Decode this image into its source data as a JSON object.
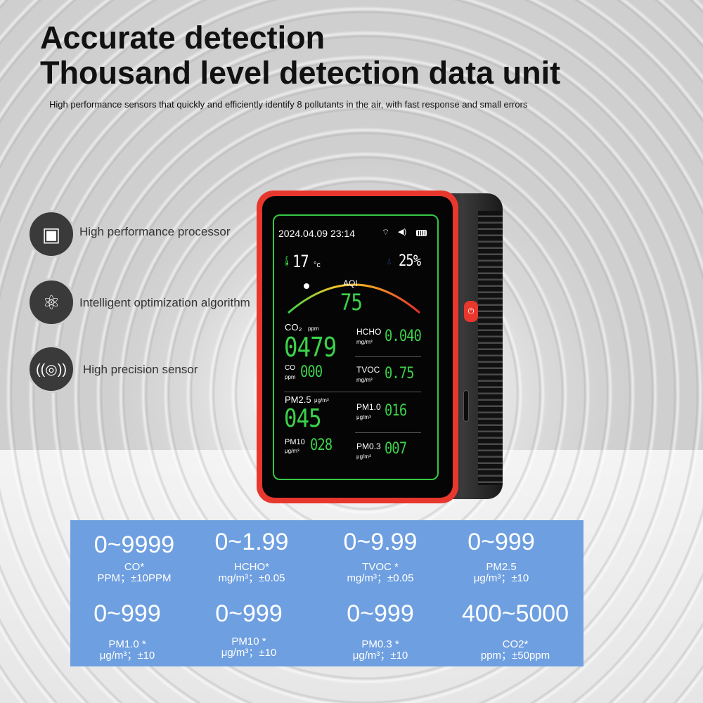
{
  "header": {
    "title_line1": "Accurate detection",
    "title_line2": "Thousand level detection data unit",
    "subtitle": "High performance sensors that quickly and efficiently identify 8 pollutants in the air, with fast response and small errors"
  },
  "features": [
    {
      "icon": "processor-chip-icon",
      "label": "High performance processor"
    },
    {
      "icon": "atom-icon",
      "label": "Intelligent optimization algorithm"
    },
    {
      "icon": "sensor-waves-icon",
      "label": "High precision sensor"
    }
  ],
  "device": {
    "datetime": "2024.04.09 23:14",
    "status_icons": [
      "wifi-icon",
      "speaker-icon",
      "battery-icon"
    ],
    "temperature": "17",
    "temperature_unit": "°c",
    "humidity": "25%",
    "aqi_label": "AQI",
    "aqi_value": "75",
    "readings": {
      "co2": {
        "label": "CO₂",
        "unit": "ppm",
        "value": "0479"
      },
      "hcho": {
        "label": "HCHO",
        "unit": "mg/m³",
        "value": "0.040"
      },
      "co": {
        "label": "CO",
        "unit": "ppm",
        "value": "000"
      },
      "tvoc": {
        "label": "TVOC",
        "unit": "mg/m³",
        "value": "0.75"
      },
      "pm25": {
        "label": "PM2.5",
        "unit": "μg/m³",
        "value": "045"
      },
      "pm10a": {
        "label": "PM1.0",
        "unit": "μg/m³",
        "value": "016"
      },
      "pm10": {
        "label": "PM10",
        "unit": "μg/m³",
        "value": "028"
      },
      "pm03": {
        "label": "PM0.3",
        "unit": "μg/m³",
        "value": "007"
      }
    },
    "colors": {
      "screen_green": "#3bd24a",
      "frame_red": "#e8372d"
    }
  },
  "specs": [
    {
      "range": "0~9999",
      "name": "CO*",
      "accuracy": "PPM；±10PPM"
    },
    {
      "range": "0~1.99",
      "name": "HCHO*",
      "accuracy": "mg/m³；±0.05"
    },
    {
      "range": "0~9.99",
      "name": "TVOC *",
      "accuracy": "mg/m³；±0.05"
    },
    {
      "range": "0~999",
      "name": "PM2.5",
      "accuracy": "μg/m³；±10"
    },
    {
      "range": "0~999",
      "name": "PM1.0 *",
      "accuracy": "μg/m³；±10"
    },
    {
      "range": "0~999",
      "name": "PM10 *",
      "accuracy": "μg/m³；±10"
    },
    {
      "range": "0~999",
      "name": "PM0.3 *",
      "accuracy": "μg/m³；±10"
    },
    {
      "range": "400~5000",
      "name": "CO2*",
      "accuracy": "ppm；±50ppm"
    }
  ],
  "panel_color": "#6e9fe0"
}
